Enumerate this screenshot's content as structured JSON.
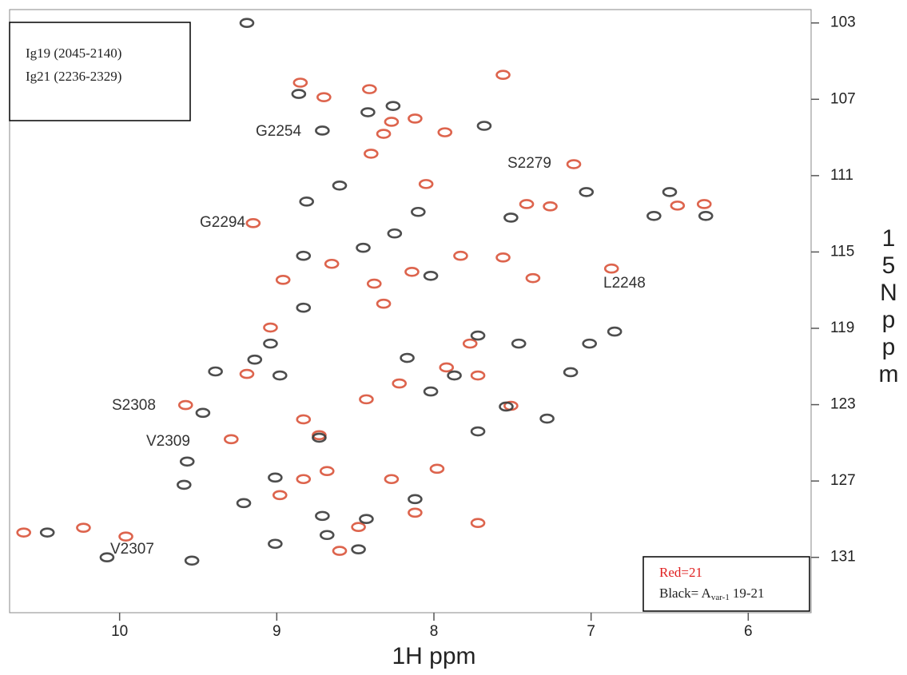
{
  "chart_data": {
    "type": "scatter",
    "x_label": "1H ppm",
    "y_label": "15N ppm",
    "box_text": [
      "Ig19 (2045-2140)",
      "Ig21 (2236-2329)"
    ],
    "xlim": [
      10.7,
      5.6
    ],
    "ylim": [
      102.3,
      133.9
    ],
    "xticks": [
      10,
      9,
      8,
      7,
      6
    ],
    "yticks": [
      103,
      107,
      111,
      115,
      119,
      123,
      127,
      131
    ],
    "annotations": [
      "G2254",
      "S2279",
      "G2294",
      "L2248",
      "S2308",
      "V2309",
      "V2307"
    ],
    "series": [
      {
        "name": "Red=21",
        "color": "#d9533a",
        "x": [
          10.61,
          10.23,
          9.96,
          9.58,
          9.29,
          9.15,
          8.85,
          8.7,
          8.41,
          8.32,
          8.4,
          8.27,
          8.12,
          8.05,
          7.93,
          7.83,
          7.56,
          7.37,
          7.56,
          7.11,
          7.41,
          7.26,
          6.45,
          6.28,
          6.87,
          9.04,
          9.19,
          8.48,
          8.12,
          7.72,
          7.98,
          8.27,
          8.83,
          8.68,
          8.43,
          8.22,
          7.92,
          7.77,
          7.72,
          8.38,
          8.14,
          8.73,
          8.83,
          8.98,
          8.6,
          8.96,
          7.51,
          8.32,
          8.65
        ],
        "y": [
          129.7,
          129.45,
          129.91,
          123.02,
          124.81,
          113.49,
          106.13,
          106.89,
          106.47,
          108.81,
          109.85,
          108.18,
          108.01,
          111.44,
          108.73,
          115.2,
          115.29,
          116.37,
          105.72,
          110.4,
          112.49,
          112.61,
          112.57,
          112.49,
          115.87,
          118.96,
          121.39,
          129.41,
          128.66,
          129.2,
          126.36,
          126.9,
          126.9,
          126.48,
          122.72,
          121.89,
          121.05,
          119.8,
          121.47,
          116.66,
          116.04,
          124.6,
          123.77,
          127.74,
          130.66,
          116.46,
          123.06,
          117.71,
          115.62
        ]
      },
      {
        "name": "Black= A",
        "name_subscript": "var-1",
        "name_suffix": "19-21",
        "color": "#3a3a3a",
        "x": [
          9.19,
          9.54,
          9.01,
          8.48,
          8.86,
          8.71,
          8.42,
          8.26,
          8.81,
          9.39,
          9.14,
          8.98,
          8.25,
          7.51,
          7.03,
          6.6,
          6.27,
          7.54,
          7.13,
          7.28,
          8.1,
          8.02,
          9.01,
          9.57,
          9.59,
          8.73,
          8.43,
          8.12,
          6.85,
          7.01,
          8.17,
          8.02,
          7.87,
          7.72,
          8.45,
          8.83,
          9.04,
          8.83,
          8.68,
          10.46,
          10.08,
          9.21,
          8.71,
          9.47,
          8.6,
          7.46,
          7.72,
          6.5,
          7.68
        ],
        "y": [
          103.0,
          131.17,
          130.29,
          130.58,
          106.72,
          108.64,
          107.68,
          107.35,
          112.36,
          121.26,
          120.64,
          121.47,
          114.03,
          113.2,
          111.86,
          113.11,
          113.11,
          123.1,
          121.3,
          123.73,
          112.9,
          116.25,
          126.82,
          125.98,
          127.2,
          124.73,
          128.99,
          127.95,
          119.17,
          119.8,
          120.55,
          122.31,
          121.47,
          119.38,
          114.78,
          115.2,
          119.8,
          117.92,
          129.83,
          129.7,
          131.0,
          128.16,
          128.83,
          123.43,
          111.52,
          119.8,
          124.4,
          111.86,
          108.39
        ]
      }
    ]
  }
}
